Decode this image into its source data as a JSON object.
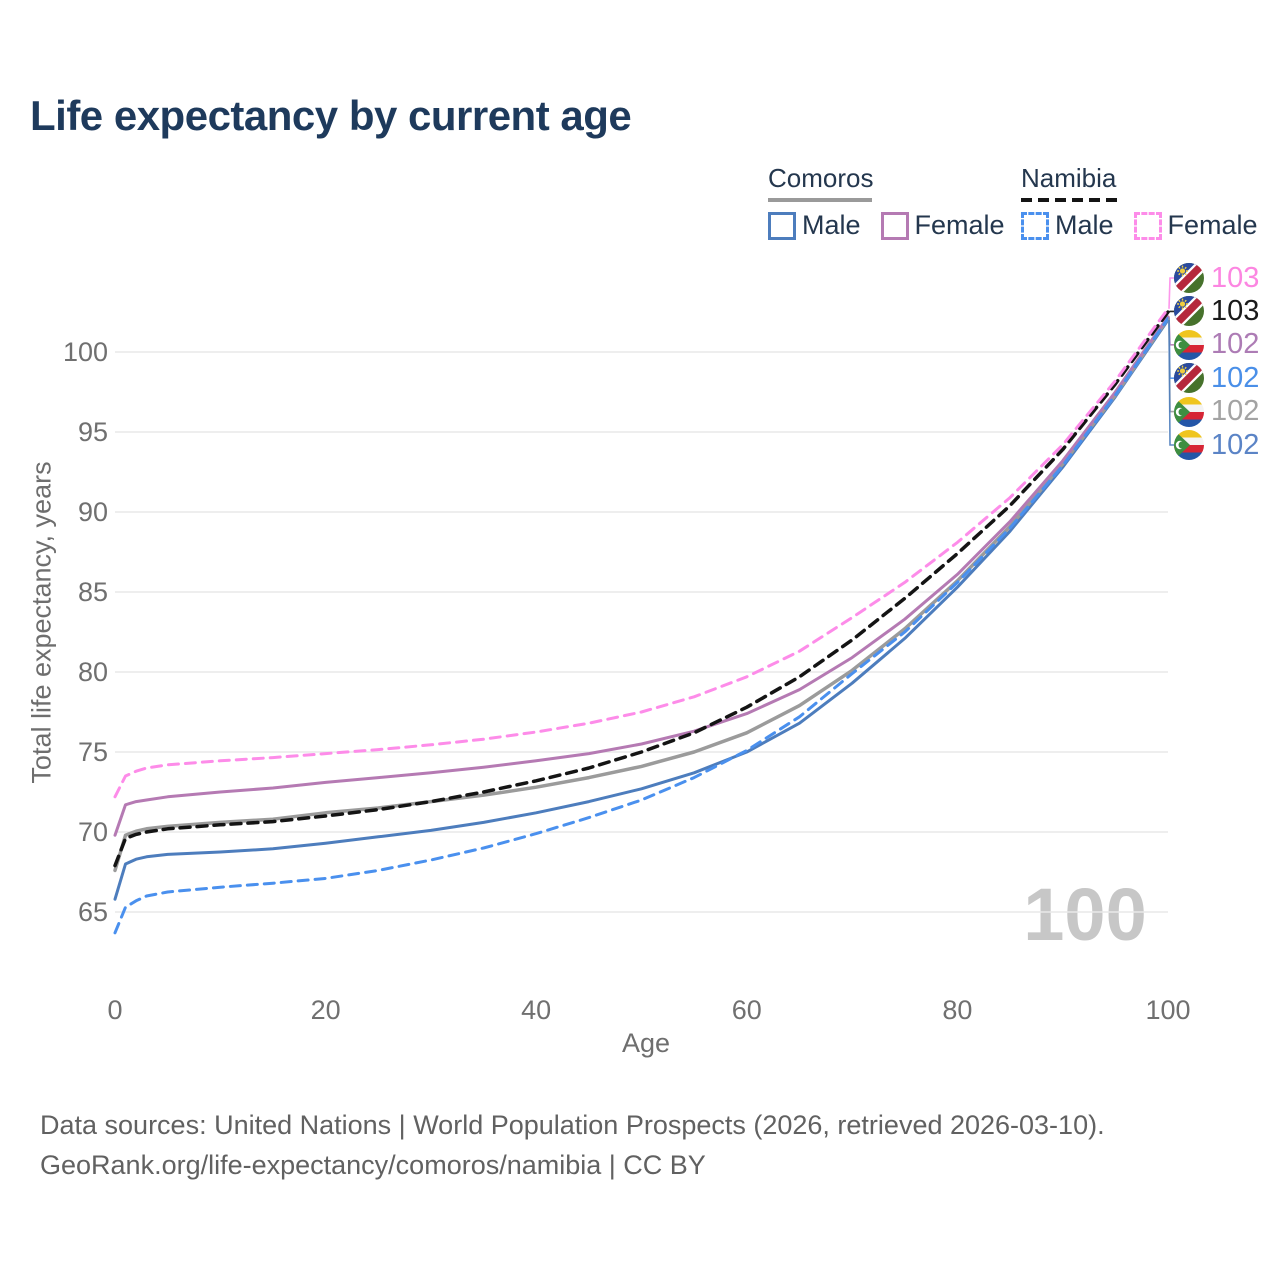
{
  "chart": {
    "title": "Life expectancy by current age",
    "watermark": "100",
    "footer_line1": "Data sources: United Nations | World Population Prospects (2026, retrieved 2026-03-10).",
    "footer_line2": "GeoRank.org/life-expectancy/comoros/namibia | CC BY"
  },
  "legend": {
    "groups": [
      {
        "title": "Comoros",
        "line_style": "solid",
        "underline_color": "#9a9a9a",
        "items": [
          {
            "label": "Male",
            "color": "#4d7dbd"
          },
          {
            "label": "Female",
            "color": "#b57ab3"
          }
        ]
      },
      {
        "title": "Namibia",
        "line_style": "dashed",
        "underline_color": "#141414",
        "items": [
          {
            "label": "Male",
            "color": "#4a90ee"
          },
          {
            "label": "Female",
            "color": "#fd8ce9"
          }
        ]
      }
    ]
  },
  "chart_data": {
    "type": "line",
    "title": "Life expectancy by current age",
    "xlabel": "Age",
    "ylabel": "Total life expectancy, years",
    "x_ticks": [
      0,
      20,
      40,
      60,
      80,
      100
    ],
    "y_ticks": [
      65,
      70,
      75,
      80,
      85,
      90,
      95,
      100
    ],
    "xlim": [
      0,
      100
    ],
    "ylim": [
      63,
      104.5
    ],
    "grid": "horizontal",
    "legend_position": "top-right",
    "ages": [
      0,
      1,
      2,
      3,
      5,
      10,
      15,
      20,
      25,
      30,
      35,
      40,
      45,
      50,
      55,
      60,
      65,
      70,
      75,
      80,
      85,
      90,
      95,
      100
    ],
    "series": [
      {
        "name": "Comoros Male",
        "country": "Comoros",
        "sex": "Male",
        "color": "#4d7dbd",
        "dash": "solid",
        "width": 3,
        "end_label": "102",
        "end_label_color": "#5b84c6",
        "values": [
          65.8,
          68.0,
          68.3,
          68.45,
          68.6,
          68.75,
          68.95,
          69.3,
          69.7,
          70.1,
          70.6,
          71.2,
          71.9,
          72.7,
          73.7,
          75.0,
          76.8,
          79.3,
          82.1,
          85.3,
          88.8,
          92.8,
          97.2,
          102.0
        ]
      },
      {
        "name": "Comoros Total",
        "country": "Comoros",
        "sex": "Total",
        "color": "#9b9b9b",
        "dash": "solid",
        "width": 3.5,
        "end_label": "102",
        "end_label_color": "#a3a3a3",
        "values": [
          67.6,
          69.8,
          70.05,
          70.2,
          70.35,
          70.6,
          70.8,
          71.2,
          71.5,
          71.9,
          72.3,
          72.8,
          73.4,
          74.1,
          75.0,
          76.2,
          77.9,
          80.1,
          82.7,
          85.7,
          89.1,
          93.0,
          97.3,
          102.1
        ]
      },
      {
        "name": "Comoros Female",
        "country": "Comoros",
        "sex": "Female",
        "color": "#b57ab3",
        "dash": "solid",
        "width": 3,
        "end_label": "102",
        "end_label_color": "#ad7cb5",
        "values": [
          69.8,
          71.7,
          71.9,
          72.0,
          72.2,
          72.5,
          72.75,
          73.1,
          73.4,
          73.7,
          74.05,
          74.45,
          74.9,
          75.5,
          76.3,
          77.4,
          78.9,
          80.9,
          83.3,
          86.1,
          89.4,
          93.2,
          97.5,
          102.2
        ]
      },
      {
        "name": "Namibia Male",
        "country": "Namibia",
        "sex": "Male",
        "color": "#4a90ee",
        "dash": "dashed",
        "width": 3,
        "end_label": "102",
        "end_label_color": "#4a8fe8",
        "values": [
          63.7,
          65.3,
          65.7,
          66.0,
          66.25,
          66.55,
          66.8,
          67.1,
          67.6,
          68.25,
          69.0,
          69.9,
          70.9,
          72.0,
          73.4,
          75.1,
          77.2,
          79.9,
          82.5,
          85.6,
          89.0,
          92.9,
          97.3,
          102.1
        ]
      },
      {
        "name": "Namibia Total",
        "country": "Namibia",
        "sex": "Total",
        "color": "#141414",
        "dash": "dashed",
        "width": 3.5,
        "end_label": "103",
        "end_label_color": "#1a1a1a",
        "values": [
          67.9,
          69.6,
          69.85,
          70.0,
          70.2,
          70.45,
          70.65,
          71.0,
          71.4,
          71.9,
          72.5,
          73.2,
          74.0,
          75.0,
          76.2,
          77.8,
          79.7,
          82.0,
          84.6,
          87.4,
          90.4,
          93.9,
          98.0,
          102.5
        ]
      },
      {
        "name": "Namibia Female",
        "country": "Namibia",
        "sex": "Female",
        "color": "#fd8ce9",
        "dash": "dashed",
        "width": 3,
        "end_label": "103",
        "end_label_color": "#fc86e1",
        "values": [
          72.2,
          73.5,
          73.8,
          74.0,
          74.2,
          74.45,
          74.65,
          74.9,
          75.15,
          75.45,
          75.8,
          76.25,
          76.8,
          77.5,
          78.45,
          79.7,
          81.3,
          83.4,
          85.6,
          88.1,
          90.9,
          94.2,
          98.2,
          102.7
        ]
      }
    ],
    "end_label_order": [
      "Namibia Female",
      "Namibia Total",
      "Comoros Female",
      "Namibia Male",
      "Comoros Total",
      "Comoros Male"
    ]
  }
}
